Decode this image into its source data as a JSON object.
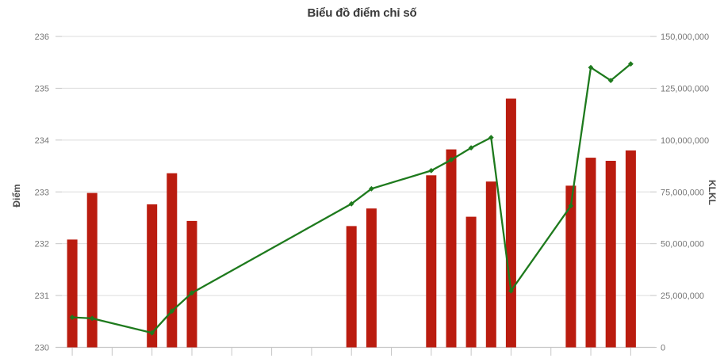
{
  "title": "Biểu đồ điểm chỉ số",
  "left_axis": {
    "title": "Điểm",
    "min": 230,
    "max": 236,
    "ticks": [
      "236",
      "235",
      "234",
      "233",
      "232",
      "231",
      "230"
    ]
  },
  "right_axis": {
    "title": "KLKL",
    "min": 0,
    "max": 150000000,
    "ticks": [
      "150,000,000",
      "125,000,000",
      "100,000,000",
      "75,000,000",
      "50,000,000",
      "25,000,000",
      "0"
    ]
  },
  "x_axis": {
    "labels_visible": false,
    "num_slots": 29,
    "tick_every": 2
  },
  "colors": {
    "bar": "#ba1c0f",
    "line": "#1e7a1d",
    "grid": "#dcdcdc",
    "axis": "#c6c6c6",
    "tick_label": "#767676",
    "title": "#3a3a3a",
    "axis_title": "#4d4d4d",
    "background": "#ffffff"
  },
  "chart_data": {
    "type": "combo",
    "title": "Biểu đồ điểm chỉ số",
    "xlabel": "",
    "ylabel_left": "Điểm",
    "ylabel_right": "KLKL",
    "ylim_left": [
      230,
      236
    ],
    "ylim_right": [
      0,
      150000000
    ],
    "grid": true,
    "legend": "none",
    "categories_note": "29 time slots, x tick marks every 2 slots, no x labels shown; slots without data are gaps",
    "series": [
      {
        "name": "KLKL",
        "type": "bar",
        "y_axis": "right",
        "color": "#ba1c0f",
        "data": [
          {
            "x": 0,
            "y": 52000000
          },
          {
            "x": 1,
            "y": 74500000
          },
          {
            "x": 4,
            "y": 69000000
          },
          {
            "x": 5,
            "y": 84000000
          },
          {
            "x": 6,
            "y": 61000000
          },
          {
            "x": 14,
            "y": 58500000
          },
          {
            "x": 15,
            "y": 67000000
          },
          {
            "x": 18,
            "y": 83000000
          },
          {
            "x": 19,
            "y": 95500000
          },
          {
            "x": 20,
            "y": 63000000
          },
          {
            "x": 21,
            "y": 80000000
          },
          {
            "x": 22,
            "y": 120000000
          },
          {
            "x": 25,
            "y": 78000000
          },
          {
            "x": 26,
            "y": 91500000
          },
          {
            "x": 27,
            "y": 90000000
          },
          {
            "x": 28,
            "y": 95000000
          }
        ]
      },
      {
        "name": "Điểm",
        "type": "line",
        "y_axis": "left",
        "color": "#1e7a1d",
        "data": [
          {
            "x": 0,
            "y": 230.58
          },
          {
            "x": 1,
            "y": 230.56
          },
          {
            "x": 4,
            "y": 230.28
          },
          {
            "x": 5,
            "y": 230.7
          },
          {
            "x": 6,
            "y": 231.05
          },
          {
            "x": 14,
            "y": 232.77
          },
          {
            "x": 15,
            "y": 233.06
          },
          {
            "x": 18,
            "y": 233.41
          },
          {
            "x": 19,
            "y": 233.62
          },
          {
            "x": 20,
            "y": 233.85
          },
          {
            "x": 21,
            "y": 234.05
          },
          {
            "x": 22,
            "y": 231.09
          },
          {
            "x": 25,
            "y": 232.73
          },
          {
            "x": 26,
            "y": 235.4
          },
          {
            "x": 27,
            "y": 235.15
          },
          {
            "x": 28,
            "y": 235.47
          }
        ]
      }
    ]
  }
}
